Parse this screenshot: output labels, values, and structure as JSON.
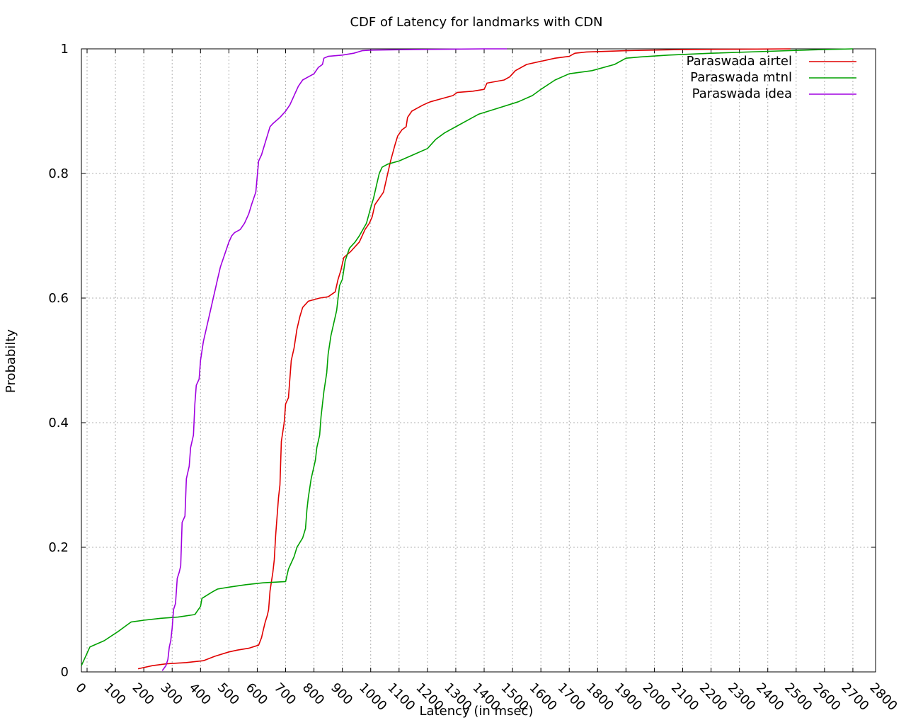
{
  "chart_data": {
    "type": "line",
    "title": "CDF of Latency for landmarks with CDN",
    "xlabel": "Latency (in msec)",
    "ylabel": "Probabilty",
    "xlim": [
      -20,
      2780
    ],
    "ylim": [
      0,
      1
    ],
    "xticks": [
      "0",
      "100",
      "200",
      "300",
      "400",
      "500",
      "600",
      "700",
      "800",
      "900",
      "1000",
      "1100",
      "1200",
      "1300",
      "1400",
      "1500",
      "1600",
      "1700",
      "1800",
      "1900",
      "2000",
      "2100",
      "2200",
      "2300",
      "2400",
      "2500",
      "2600",
      "2700",
      "2800"
    ],
    "xtick_values": [
      0,
      100,
      200,
      300,
      400,
      500,
      600,
      700,
      800,
      900,
      1000,
      1100,
      1200,
      1300,
      1400,
      1500,
      1600,
      1700,
      1800,
      1900,
      2000,
      2100,
      2200,
      2300,
      2400,
      2500,
      2600,
      2700,
      2800
    ],
    "yticks": [
      "0",
      "0.2",
      "0.4",
      "0.6",
      "0.8",
      "1"
    ],
    "ytick_values": [
      0,
      0.2,
      0.4,
      0.6,
      0.8,
      1
    ],
    "grid": true,
    "legend_position": "top-right",
    "series": [
      {
        "name": "Paraswada airtel",
        "color": "#e00000",
        "points": [
          [
            180,
            0.005
          ],
          [
            230,
            0.01
          ],
          [
            280,
            0.013
          ],
          [
            350,
            0.015
          ],
          [
            410,
            0.018
          ],
          [
            450,
            0.025
          ],
          [
            500,
            0.032
          ],
          [
            530,
            0.035
          ],
          [
            570,
            0.038
          ],
          [
            605,
            0.043
          ],
          [
            615,
            0.055
          ],
          [
            620,
            0.065
          ],
          [
            628,
            0.08
          ],
          [
            635,
            0.09
          ],
          [
            640,
            0.1
          ],
          [
            645,
            0.13
          ],
          [
            650,
            0.145
          ],
          [
            655,
            0.16
          ],
          [
            660,
            0.18
          ],
          [
            665,
            0.22
          ],
          [
            670,
            0.25
          ],
          [
            675,
            0.28
          ],
          [
            680,
            0.3
          ],
          [
            685,
            0.37
          ],
          [
            695,
            0.4
          ],
          [
            700,
            0.43
          ],
          [
            710,
            0.44
          ],
          [
            715,
            0.47
          ],
          [
            720,
            0.5
          ],
          [
            730,
            0.52
          ],
          [
            740,
            0.55
          ],
          [
            750,
            0.57
          ],
          [
            760,
            0.585
          ],
          [
            780,
            0.595
          ],
          [
            820,
            0.6
          ],
          [
            850,
            0.602
          ],
          [
            875,
            0.61
          ],
          [
            885,
            0.63
          ],
          [
            895,
            0.645
          ],
          [
            905,
            0.665
          ],
          [
            930,
            0.675
          ],
          [
            960,
            0.69
          ],
          [
            980,
            0.71
          ],
          [
            995,
            0.72
          ],
          [
            1005,
            0.73
          ],
          [
            1015,
            0.75
          ],
          [
            1030,
            0.76
          ],
          [
            1045,
            0.77
          ],
          [
            1055,
            0.79
          ],
          [
            1060,
            0.8
          ],
          [
            1070,
            0.82
          ],
          [
            1085,
            0.845
          ],
          [
            1095,
            0.86
          ],
          [
            1110,
            0.87
          ],
          [
            1125,
            0.875
          ],
          [
            1130,
            0.89
          ],
          [
            1145,
            0.9
          ],
          [
            1165,
            0.905
          ],
          [
            1185,
            0.91
          ],
          [
            1210,
            0.915
          ],
          [
            1250,
            0.92
          ],
          [
            1290,
            0.925
          ],
          [
            1305,
            0.93
          ],
          [
            1360,
            0.932
          ],
          [
            1400,
            0.935
          ],
          [
            1410,
            0.945
          ],
          [
            1470,
            0.95
          ],
          [
            1490,
            0.955
          ],
          [
            1510,
            0.965
          ],
          [
            1550,
            0.975
          ],
          [
            1600,
            0.98
          ],
          [
            1650,
            0.985
          ],
          [
            1700,
            0.988
          ],
          [
            1720,
            0.993
          ],
          [
            1760,
            0.995
          ],
          [
            1900,
            0.997
          ],
          [
            2100,
            0.999
          ],
          [
            2300,
            0.9995
          ],
          [
            2480,
            1.0
          ]
        ]
      },
      {
        "name": "Paraswada mtnl",
        "color": "#00a000",
        "points": [
          [
            -20,
            0.01
          ],
          [
            10,
            0.04
          ],
          [
            60,
            0.05
          ],
          [
            110,
            0.065
          ],
          [
            140,
            0.075
          ],
          [
            155,
            0.08
          ],
          [
            200,
            0.083
          ],
          [
            260,
            0.086
          ],
          [
            320,
            0.088
          ],
          [
            380,
            0.092
          ],
          [
            400,
            0.105
          ],
          [
            405,
            0.118
          ],
          [
            440,
            0.128
          ],
          [
            460,
            0.133
          ],
          [
            500,
            0.136
          ],
          [
            560,
            0.14
          ],
          [
            620,
            0.143
          ],
          [
            700,
            0.145
          ],
          [
            710,
            0.165
          ],
          [
            720,
            0.175
          ],
          [
            730,
            0.185
          ],
          [
            740,
            0.2
          ],
          [
            760,
            0.215
          ],
          [
            770,
            0.23
          ],
          [
            775,
            0.26
          ],
          [
            780,
            0.28
          ],
          [
            790,
            0.31
          ],
          [
            795,
            0.32
          ],
          [
            805,
            0.34
          ],
          [
            810,
            0.36
          ],
          [
            820,
            0.38
          ],
          [
            825,
            0.41
          ],
          [
            835,
            0.45
          ],
          [
            845,
            0.48
          ],
          [
            850,
            0.51
          ],
          [
            860,
            0.54
          ],
          [
            870,
            0.56
          ],
          [
            880,
            0.58
          ],
          [
            890,
            0.62
          ],
          [
            900,
            0.63
          ],
          [
            910,
            0.66
          ],
          [
            925,
            0.68
          ],
          [
            945,
            0.69
          ],
          [
            960,
            0.7
          ],
          [
            985,
            0.72
          ],
          [
            1000,
            0.745
          ],
          [
            1010,
            0.76
          ],
          [
            1020,
            0.78
          ],
          [
            1030,
            0.8
          ],
          [
            1040,
            0.81
          ],
          [
            1060,
            0.815
          ],
          [
            1100,
            0.82
          ],
          [
            1150,
            0.83
          ],
          [
            1200,
            0.84
          ],
          [
            1230,
            0.855
          ],
          [
            1260,
            0.865
          ],
          [
            1300,
            0.875
          ],
          [
            1340,
            0.885
          ],
          [
            1380,
            0.895
          ],
          [
            1450,
            0.905
          ],
          [
            1520,
            0.915
          ],
          [
            1570,
            0.925
          ],
          [
            1600,
            0.935
          ],
          [
            1650,
            0.95
          ],
          [
            1700,
            0.96
          ],
          [
            1780,
            0.965
          ],
          [
            1860,
            0.975
          ],
          [
            1900,
            0.985
          ],
          [
            1950,
            0.987
          ],
          [
            2050,
            0.99
          ],
          [
            2200,
            0.993
          ],
          [
            2400,
            0.996
          ],
          [
            2600,
            0.999
          ],
          [
            2700,
            1.0
          ]
        ]
      },
      {
        "name": "Paraswada idea",
        "color": "#a000e0",
        "points": [
          [
            265,
            0.002
          ],
          [
            270,
            0.005
          ],
          [
            278,
            0.01
          ],
          [
            285,
            0.02
          ],
          [
            290,
            0.04
          ],
          [
            295,
            0.05
          ],
          [
            300,
            0.07
          ],
          [
            305,
            0.1
          ],
          [
            312,
            0.11
          ],
          [
            318,
            0.15
          ],
          [
            325,
            0.16
          ],
          [
            330,
            0.17
          ],
          [
            335,
            0.24
          ],
          [
            345,
            0.25
          ],
          [
            350,
            0.31
          ],
          [
            360,
            0.33
          ],
          [
            365,
            0.36
          ],
          [
            375,
            0.38
          ],
          [
            380,
            0.43
          ],
          [
            385,
            0.46
          ],
          [
            395,
            0.47
          ],
          [
            400,
            0.5
          ],
          [
            410,
            0.53
          ],
          [
            420,
            0.55
          ],
          [
            430,
            0.57
          ],
          [
            440,
            0.59
          ],
          [
            450,
            0.61
          ],
          [
            460,
            0.63
          ],
          [
            470,
            0.65
          ],
          [
            485,
            0.67
          ],
          [
            500,
            0.69
          ],
          [
            510,
            0.7
          ],
          [
            520,
            0.705
          ],
          [
            540,
            0.71
          ],
          [
            555,
            0.72
          ],
          [
            570,
            0.735
          ],
          [
            580,
            0.75
          ],
          [
            595,
            0.77
          ],
          [
            605,
            0.82
          ],
          [
            615,
            0.83
          ],
          [
            625,
            0.845
          ],
          [
            635,
            0.86
          ],
          [
            645,
            0.875
          ],
          [
            655,
            0.88
          ],
          [
            680,
            0.89
          ],
          [
            690,
            0.895
          ],
          [
            700,
            0.9
          ],
          [
            715,
            0.91
          ],
          [
            725,
            0.92
          ],
          [
            735,
            0.93
          ],
          [
            745,
            0.94
          ],
          [
            760,
            0.95
          ],
          [
            780,
            0.955
          ],
          [
            800,
            0.96
          ],
          [
            815,
            0.97
          ],
          [
            830,
            0.975
          ],
          [
            835,
            0.985
          ],
          [
            850,
            0.988
          ],
          [
            900,
            0.99
          ],
          [
            940,
            0.993
          ],
          [
            970,
            0.997
          ],
          [
            1000,
            0.998
          ],
          [
            1150,
            0.999
          ],
          [
            1400,
            1.0
          ],
          [
            1480,
            1.0
          ]
        ]
      }
    ]
  }
}
